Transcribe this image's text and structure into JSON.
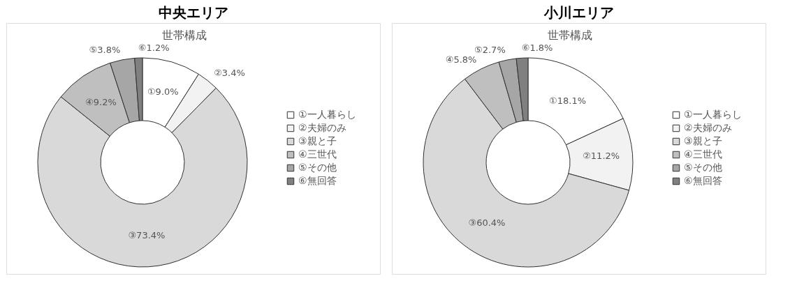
{
  "chart_data": [
    {
      "type": "donut",
      "title": "中央エリア",
      "subtitle": "世帯構成",
      "categories": [
        "①一人暮らし",
        "②夫婦のみ",
        "③親と子",
        "④三世代",
        "⑤その他",
        "⑥無回答"
      ],
      "values": [
        9.0,
        3.4,
        73.4,
        9.2,
        3.8,
        1.2
      ],
      "value_labels": [
        "①9.0%",
        "②3.4%",
        "③73.4%",
        "④9.2%",
        "⑤3.8%",
        "⑥1.2%"
      ],
      "colors": [
        "#ffffff",
        "#f2f2f2",
        "#d9d9d9",
        "#bfbfbf",
        "#a6a6a6",
        "#808080"
      ],
      "legend": "right"
    },
    {
      "type": "donut",
      "title": "小川エリア",
      "subtitle": "世帯構成",
      "categories": [
        "①一人暮らし",
        "②夫婦のみ",
        "③親と子",
        "④三世代",
        "⑤その他",
        "⑥無回答"
      ],
      "values": [
        18.1,
        11.2,
        60.4,
        5.8,
        2.7,
        1.8
      ],
      "value_labels": [
        "①18.1%",
        "②11.2%",
        "③60.4%",
        "④5.8%",
        "⑤2.7%",
        "⑥1.8%"
      ],
      "colors": [
        "#ffffff",
        "#f2f2f2",
        "#d9d9d9",
        "#bfbfbf",
        "#a6a6a6",
        "#808080"
      ],
      "legend": "right"
    }
  ]
}
